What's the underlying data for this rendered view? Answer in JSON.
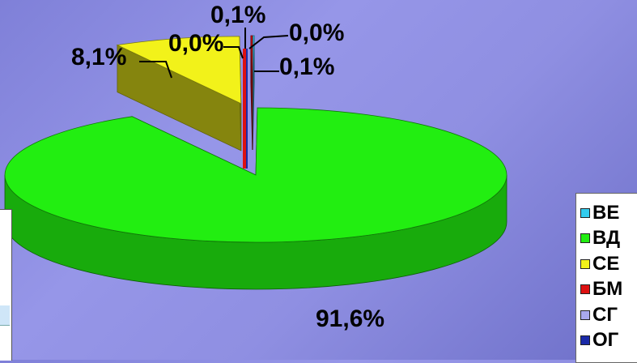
{
  "chart_data": {
    "type": "pie",
    "three_d": true,
    "exploded": true,
    "legend_position": "right",
    "slices": [
      {
        "name": "ВЕ",
        "value": 0.1,
        "label": "0,1%",
        "color": "#33ccee"
      },
      {
        "name": "ВД",
        "value": 91.6,
        "label": "91,6%",
        "color": "#22ee11"
      },
      {
        "name": "СЕ",
        "value": 8.1,
        "label": "8,1%",
        "color": "#f2f21a"
      },
      {
        "name": "БМ",
        "value": 0.1,
        "label": "0,1%",
        "color": "#dd1111"
      },
      {
        "name": "СГ",
        "value": 0.0,
        "label": "0,0%",
        "color": "#a9a9ee"
      },
      {
        "name": "ОГ",
        "value": 0.0,
        "label": "0,0%",
        "color": "#1a2aa8"
      }
    ]
  }
}
